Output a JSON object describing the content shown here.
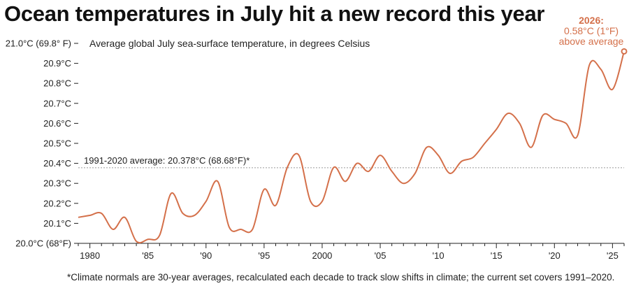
{
  "title": "Ocean temperatures in July hit a new record this year",
  "subtitle": "Average global July sea-surface temperature, in degrees Celsius",
  "footnote": "*Climate normals are 30-year averages, recalculated each decade to track slow shifts in climate; the current set covers 1991–2020.",
  "colors": {
    "line": "#d4704a",
    "axis": "#222222",
    "reference": "#999999"
  },
  "chart_data": {
    "type": "line",
    "title": "Ocean temperatures in July hit a new record this year",
    "subtitle": "Average global July sea-surface temperature, in degrees Celsius",
    "xlabel": "",
    "ylabel": "",
    "xlim": [
      1979,
      2026
    ],
    "ylim": [
      20.0,
      21.0
    ],
    "x_ticks": [
      1980,
      1985,
      1990,
      1995,
      2000,
      2005,
      2010,
      2015,
      2020,
      2025
    ],
    "x_tick_labels": [
      "1980",
      "'85",
      "'90",
      "'95",
      "2000",
      "'05",
      "'10",
      "'15",
      "'20",
      "'25"
    ],
    "y_ticks": [
      20.0,
      20.1,
      20.2,
      20.3,
      20.4,
      20.5,
      20.6,
      20.7,
      20.8,
      20.9,
      21.0
    ],
    "y_tick_labels": [
      "20.0°C (68°F)",
      "20.1°C",
      "20.2°C",
      "20.3°C",
      "20.4°C",
      "20.5°C",
      "20.6°C",
      "20.7°C",
      "20.8°C",
      "20.9°C",
      "21.0°C (69.8° F)"
    ],
    "grid": false,
    "legend": "none",
    "reference_line": {
      "value": 20.378,
      "label": "1991-2020 average: 20.378°C (68.68°F)*"
    },
    "annotation": {
      "year": 2026,
      "lines": [
        "2026:",
        "0.58°C (1°F)",
        "above average"
      ]
    },
    "series": [
      {
        "x": [
          1979,
          1980,
          1981,
          1982,
          1983,
          1984,
          1985,
          1986,
          1987,
          1988,
          1989,
          1990,
          1991,
          1992,
          1993,
          1994,
          1995,
          1996,
          1997,
          1998,
          1999,
          2000,
          2001,
          2002,
          2003,
          2004,
          2005,
          2006,
          2007,
          2008,
          2009,
          2010,
          2011,
          2012,
          2013,
          2014,
          2015,
          2016,
          2017,
          2018,
          2019,
          2020,
          2021,
          2022,
          2023,
          2024,
          2025,
          2026
        ],
        "y": [
          20.13,
          20.14,
          20.15,
          20.07,
          20.13,
          20.01,
          20.02,
          20.04,
          20.25,
          20.15,
          20.14,
          20.21,
          20.31,
          20.08,
          20.07,
          20.07,
          20.27,
          20.19,
          20.38,
          20.44,
          20.21,
          20.21,
          20.38,
          20.31,
          20.4,
          20.36,
          20.44,
          20.36,
          20.3,
          20.35,
          20.48,
          20.44,
          20.35,
          20.41,
          20.43,
          20.5,
          20.57,
          20.65,
          20.6,
          20.48,
          20.64,
          20.62,
          20.6,
          20.54,
          20.89,
          20.87,
          20.77,
          20.96
        ]
      }
    ]
  }
}
